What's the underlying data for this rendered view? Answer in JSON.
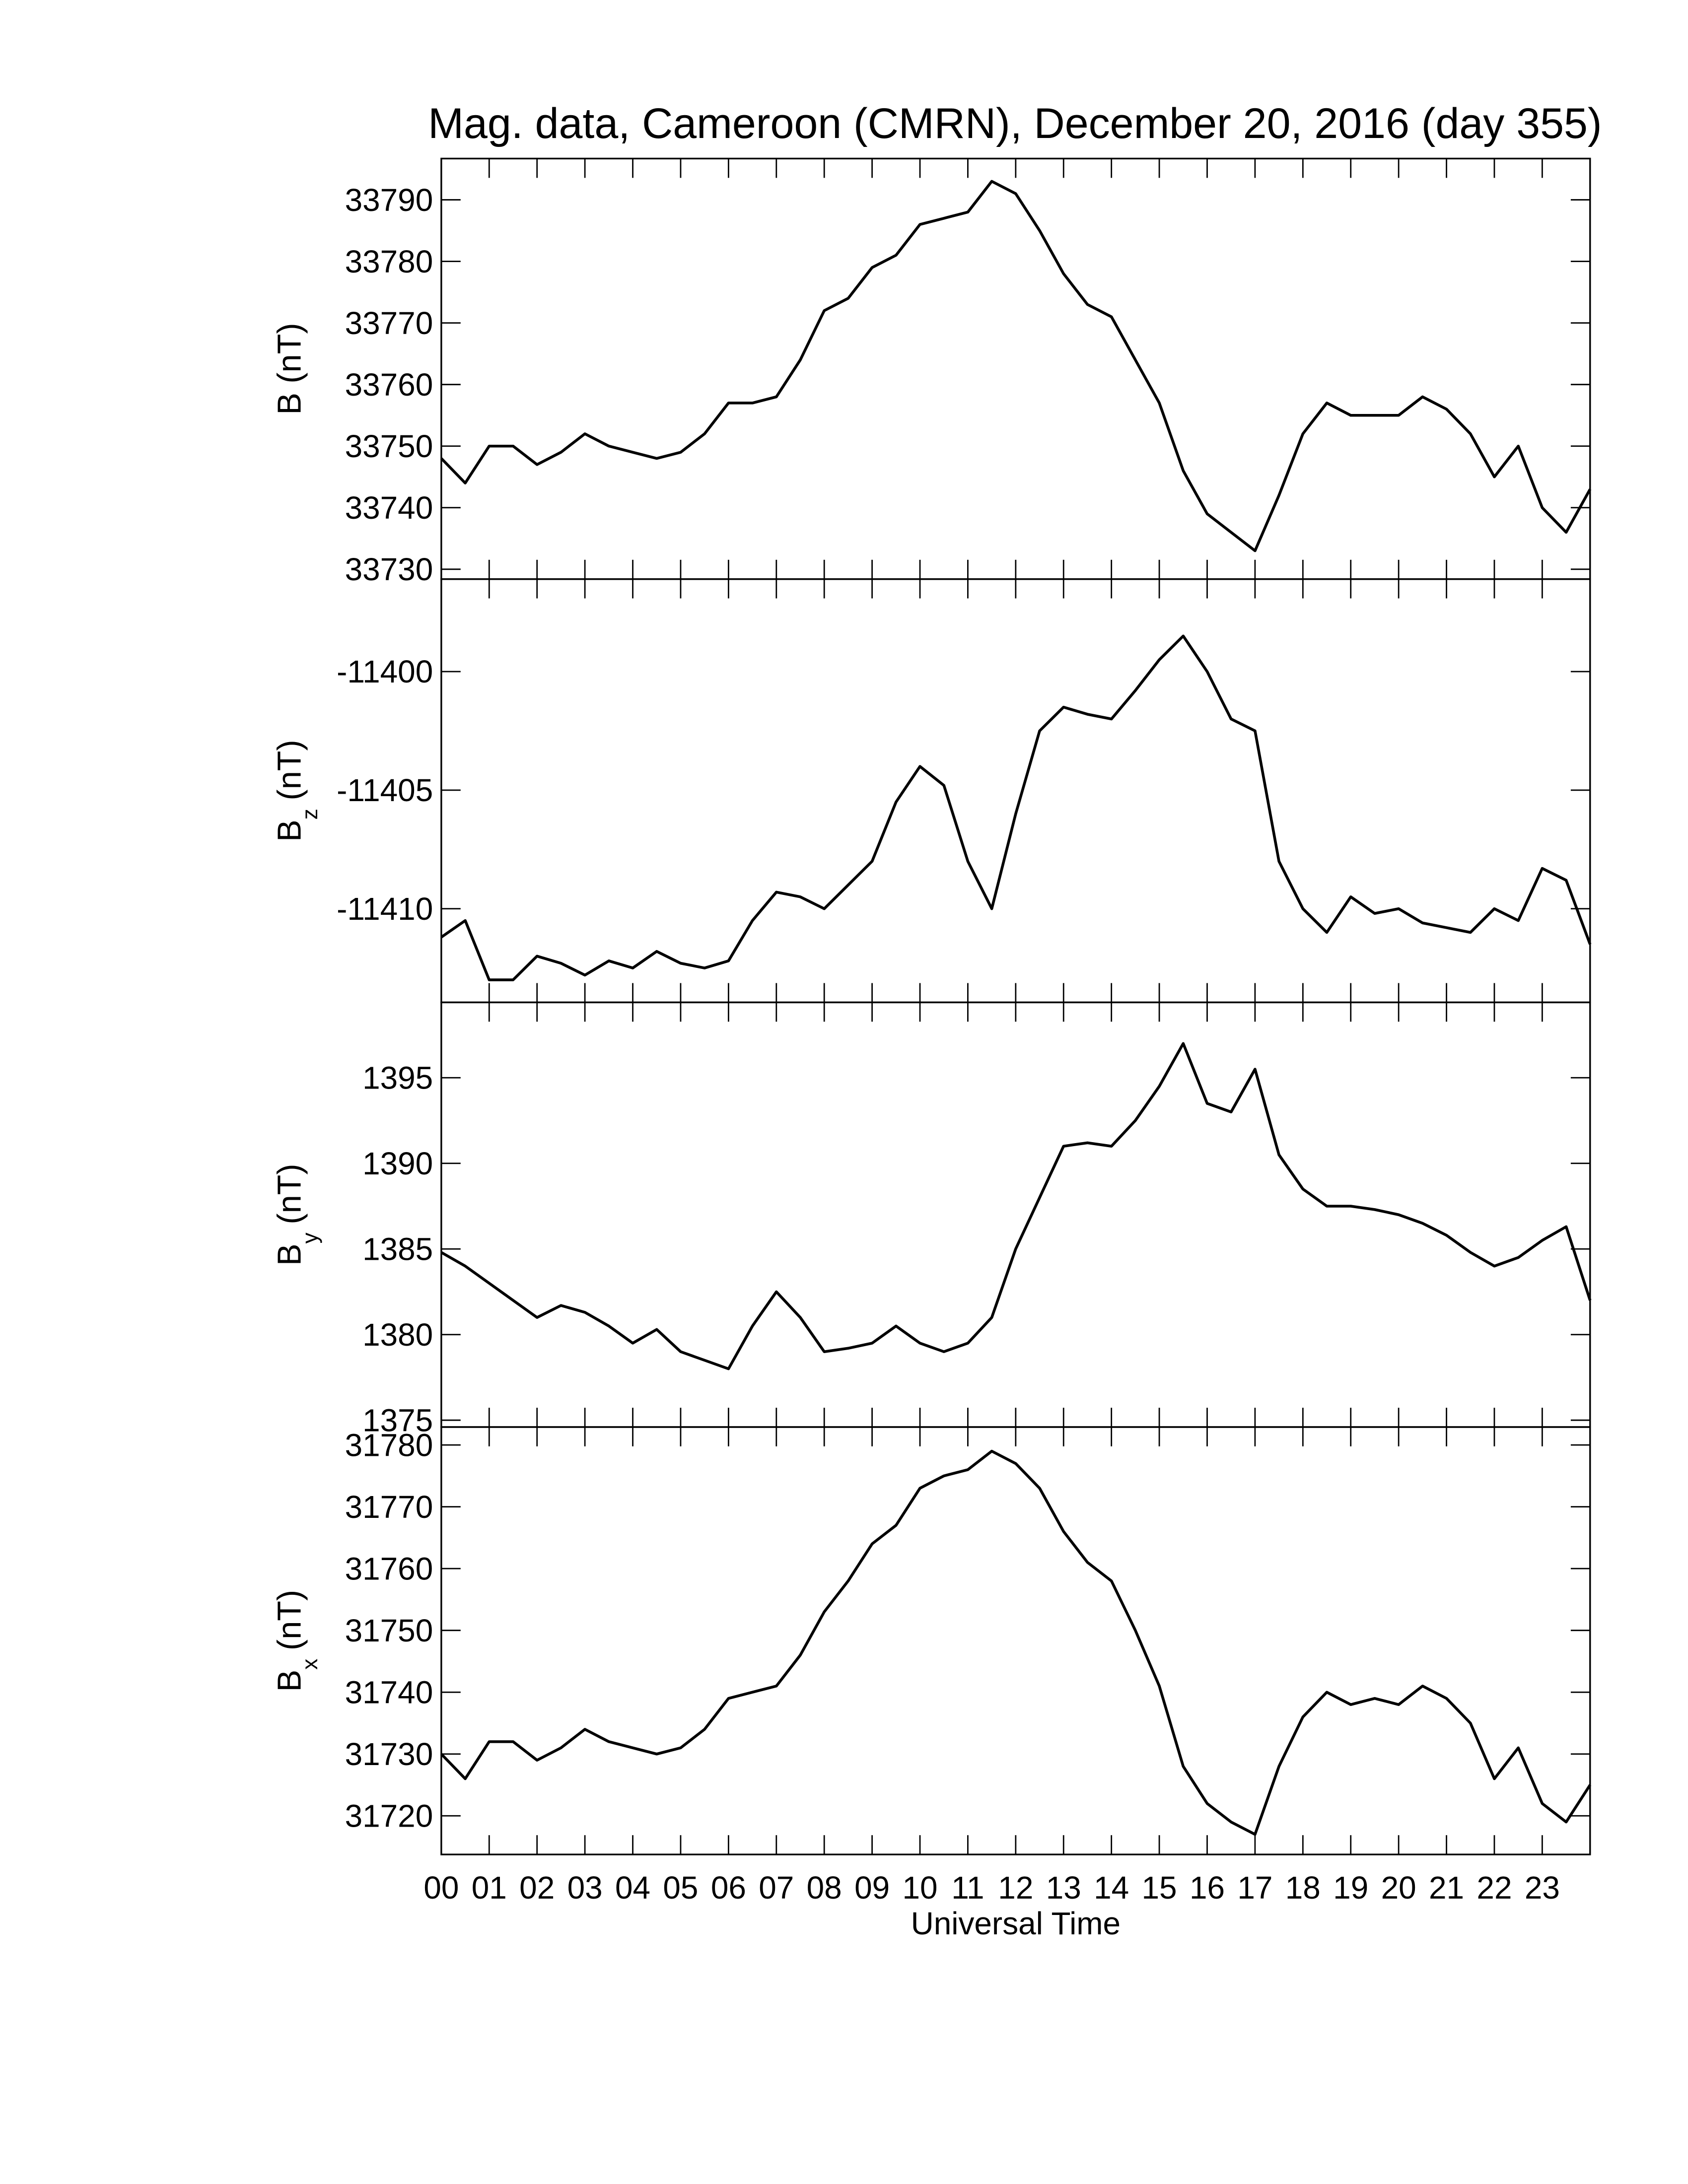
{
  "chart_data": [
    {
      "type": "line",
      "title": "Mag. data, Cameroon (CMRN), December 20, 2016 (day 355)",
      "ylabel": "B (nT)",
      "color": "#000000",
      "x": [
        0,
        0.5,
        1,
        1.5,
        2,
        2.5,
        3,
        3.5,
        4,
        4.5,
        5,
        5.5,
        6,
        6.5,
        7,
        7.5,
        8,
        8.5,
        9,
        9.5,
        10,
        10.5,
        11,
        11.5,
        12,
        12.5,
        13,
        13.5,
        14,
        14.5,
        15,
        15.5,
        16,
        16.5,
        17,
        17.5,
        18,
        18.5,
        19,
        19.5,
        20,
        20.5,
        21,
        21.5,
        22,
        22.5,
        23,
        23.5,
        24
      ],
      "values": [
        33748,
        33744,
        33750,
        33750,
        33747,
        33749,
        33752,
        33750,
        33749,
        33748,
        33749,
        33752,
        33757,
        33757,
        33758,
        33764,
        33772,
        33774,
        33779,
        33781,
        33786,
        33787,
        33788,
        33793,
        33791,
        33785,
        33778,
        33773,
        33771,
        33764,
        33757,
        33746,
        33739,
        33736,
        33733,
        33742,
        33752,
        33757,
        33755,
        33755,
        33755,
        33758,
        33756,
        33752,
        33745,
        33750,
        33740,
        33736,
        33743
      ],
      "xlim": [
        0,
        24
      ],
      "ylim": [
        33728.4,
        33796.7
      ],
      "yticks": [
        33730,
        33740,
        33750,
        33760,
        33770,
        33780,
        33790
      ]
    },
    {
      "type": "line",
      "ylabel": "B",
      "ylabel_subscript": "z",
      "ylabel_unit": "(nT)",
      "color": "#000000",
      "x": [
        0,
        0.5,
        1,
        1.5,
        2,
        2.5,
        3,
        3.5,
        4,
        4.5,
        5,
        5.5,
        6,
        6.5,
        7,
        7.5,
        8,
        8.5,
        9,
        9.5,
        10,
        10.5,
        11,
        11.5,
        12,
        12.5,
        13,
        13.5,
        14,
        14.5,
        15,
        15.5,
        16,
        16.5,
        17,
        17.5,
        18,
        18.5,
        19,
        19.5,
        20,
        20.5,
        21,
        21.5,
        22,
        22.5,
        23,
        23.5,
        24
      ],
      "values": [
        -11411.2,
        -11410.5,
        -11413,
        -11413,
        -11412,
        -11412.3,
        -11412.8,
        -11412.2,
        -11412.5,
        -11411.8,
        -11412.3,
        -11412.5,
        -11412.2,
        -11410.5,
        -11409.3,
        -11409.5,
        -11410,
        -11409,
        -11408,
        -11405.5,
        -11404,
        -11404.8,
        -11408,
        -11410,
        -11406,
        -11402.5,
        -11401.5,
        -11401.8,
        -11402,
        -11400.8,
        -11399.5,
        -11398.5,
        -11400,
        -11402,
        -11402.5,
        -11408,
        -11410,
        -11411,
        -11409.5,
        -11410.2,
        -11410,
        -11410.6,
        -11410.8,
        -11411,
        -11410,
        -11410.5,
        -11408.3,
        -11408.8,
        -11411.5
      ],
      "xlim": [
        0,
        24
      ],
      "ylim": [
        -11413.95,
        -11396.1
      ],
      "yticks": [
        -11410,
        -11405,
        -11400
      ]
    },
    {
      "type": "line",
      "ylabel": "B",
      "ylabel_subscript": "y",
      "ylabel_unit": "(nT)",
      "color": "#000000",
      "x": [
        0,
        0.5,
        1,
        1.5,
        2,
        2.5,
        3,
        3.5,
        4,
        4.5,
        5,
        5.5,
        6,
        6.5,
        7,
        7.5,
        8,
        8.5,
        9,
        9.5,
        10,
        10.5,
        11,
        11.5,
        12,
        12.5,
        13,
        13.5,
        14,
        14.5,
        15,
        15.5,
        16,
        16.5,
        17,
        17.5,
        18,
        18.5,
        19,
        19.5,
        20,
        20.5,
        21,
        21.5,
        22,
        22.5,
        23,
        23.5,
        24
      ],
      "values": [
        1384.8,
        1384,
        1383,
        1382,
        1381,
        1381.7,
        1381.3,
        1380.5,
        1379.5,
        1380.3,
        1379,
        1378.5,
        1378,
        1380.5,
        1382.5,
        1381,
        1379,
        1379.2,
        1379.5,
        1380.5,
        1379.5,
        1379,
        1379.5,
        1381,
        1385,
        1388,
        1391,
        1391.2,
        1391,
        1392.5,
        1394.5,
        1397,
        1393.5,
        1393,
        1395.5,
        1390.5,
        1388.5,
        1387.5,
        1387.5,
        1387.3,
        1387,
        1386.5,
        1385.8,
        1384.8,
        1384,
        1384.5,
        1385.5,
        1386.3,
        1382
      ],
      "xlim": [
        0,
        24
      ],
      "ylim": [
        1374.6,
        1399.4
      ],
      "yticks": [
        1375,
        1380,
        1385,
        1390,
        1395
      ]
    },
    {
      "type": "line",
      "ylabel": "B",
      "ylabel_subscript": "x",
      "ylabel_unit": "(nT)",
      "xlabel": "Universal Time",
      "color": "#000000",
      "x": [
        0,
        0.5,
        1,
        1.5,
        2,
        2.5,
        3,
        3.5,
        4,
        4.5,
        5,
        5.5,
        6,
        6.5,
        7,
        7.5,
        8,
        8.5,
        9,
        9.5,
        10,
        10.5,
        11,
        11.5,
        12,
        12.5,
        13,
        13.5,
        14,
        14.5,
        15,
        15.5,
        16,
        16.5,
        17,
        17.5,
        18,
        18.5,
        19,
        19.5,
        20,
        20.5,
        21,
        21.5,
        22,
        22.5,
        23,
        23.5,
        24
      ],
      "values": [
        31730,
        31726,
        31732,
        31732,
        31729,
        31731,
        31734,
        31732,
        31731,
        31730,
        31731,
        31734,
        31739,
        31740,
        31741,
        31746,
        31753,
        31758,
        31764,
        31767,
        31773,
        31775,
        31776,
        31779,
        31777,
        31773,
        31766,
        31761,
        31758,
        31750,
        31741,
        31728,
        31722,
        31719,
        31717,
        31728,
        31736,
        31740,
        31738,
        31739,
        31738,
        31741,
        31739,
        31735,
        31726,
        31731,
        31722,
        31719,
        31725
      ],
      "xlim": [
        0,
        24
      ],
      "ylim": [
        31713.75,
        31782.9
      ],
      "yticks": [
        31720,
        31730,
        31740,
        31750,
        31760,
        31770,
        31780
      ],
      "xticks": [
        {
          "value": 0,
          "label": "00"
        },
        {
          "value": 1,
          "label": "01"
        },
        {
          "value": 2,
          "label": "02"
        },
        {
          "value": 3,
          "label": "03"
        },
        {
          "value": 4,
          "label": "04"
        },
        {
          "value": 5,
          "label": "05"
        },
        {
          "value": 6,
          "label": "06"
        },
        {
          "value": 7,
          "label": "07"
        },
        {
          "value": 8,
          "label": "08"
        },
        {
          "value": 9,
          "label": "09"
        },
        {
          "value": 10,
          "label": "10"
        },
        {
          "value": 11,
          "label": "11"
        },
        {
          "value": 12,
          "label": "12"
        },
        {
          "value": 13,
          "label": "13"
        },
        {
          "value": 14,
          "label": "14"
        },
        {
          "value": 15,
          "label": "15"
        },
        {
          "value": 16,
          "label": "16"
        },
        {
          "value": 17,
          "label": "17"
        },
        {
          "value": 18,
          "label": "18"
        },
        {
          "value": 19,
          "label": "19"
        },
        {
          "value": 20,
          "label": "20"
        },
        {
          "value": 21,
          "label": "21"
        },
        {
          "value": 22,
          "label": "22"
        },
        {
          "value": 23,
          "label": "23"
        }
      ]
    }
  ]
}
